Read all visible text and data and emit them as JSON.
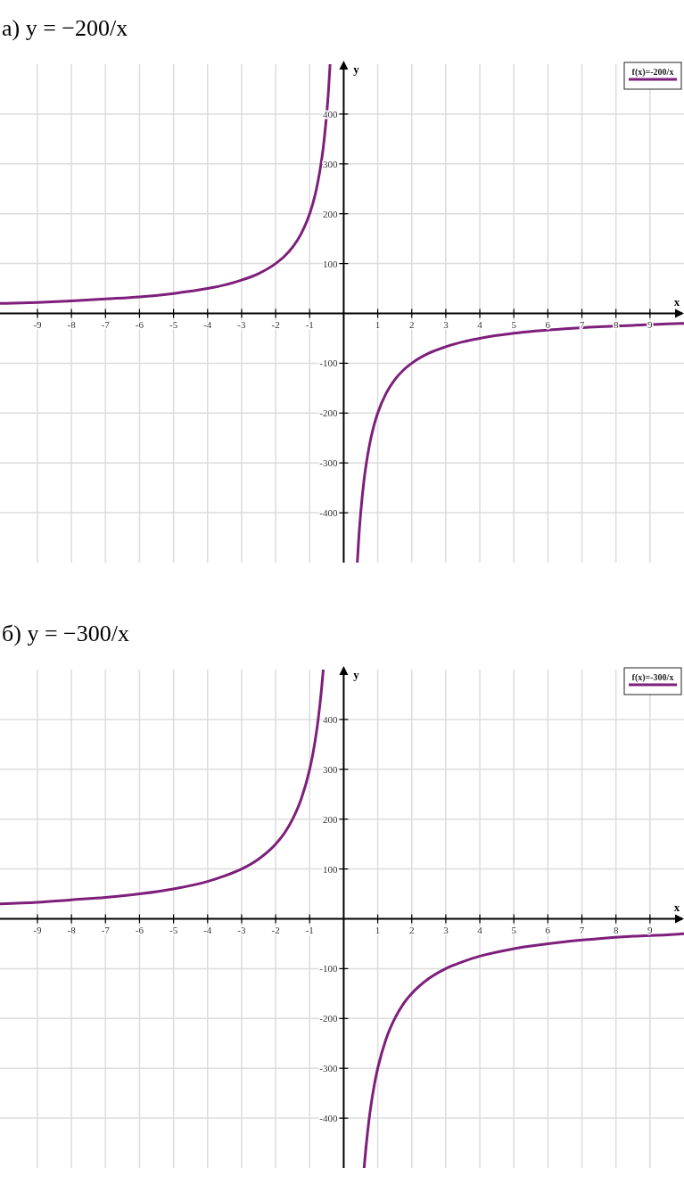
{
  "chart_data": [
    {
      "type": "line",
      "title": "а) y = −200/x",
      "xlabel": "x",
      "ylabel": "y",
      "xlim": [
        -10.1,
        10
      ],
      "ylim": [
        -500,
        500
      ],
      "xticks": [
        -9,
        -8,
        -7,
        -6,
        -5,
        -4,
        -3,
        -2,
        -1,
        1,
        2,
        3,
        4,
        5,
        6,
        7,
        8,
        9
      ],
      "yticks": [
        -400,
        -300,
        -200,
        -100,
        100,
        200,
        300,
        400
      ],
      "grid": true,
      "legend": "top right",
      "series": [
        {
          "name": "f(x)=-200/x",
          "color": "#7d1f7b",
          "x": [
            -10.1,
            -9,
            -8,
            -7,
            -6,
            -5,
            -4,
            -3.5,
            -3,
            -2.5,
            -2,
            -1.75,
            -1.5,
            -1.25,
            -1,
            -0.9,
            -0.8,
            -0.7,
            -0.6,
            -0.55,
            -0.45,
            -0.4,
            0,
            0.4,
            0.45,
            0.5,
            0.6,
            0.7,
            0.8,
            0.9,
            1,
            1.25,
            1.5,
            1.75,
            2,
            2.5,
            3,
            3.5,
            4,
            5,
            6.5,
            7.5,
            8.5,
            9.5,
            10
          ],
          "values": [
            20,
            22,
            25,
            29,
            33,
            40,
            50,
            57,
            67,
            80,
            100,
            114,
            133,
            160,
            200,
            222,
            250,
            286,
            333,
            364,
            444,
            500,
            null,
            -500,
            -444,
            -400,
            -333,
            -286,
            -250,
            -222,
            -200,
            -160,
            -133,
            -114,
            -100,
            -80,
            -67,
            -57,
            -50,
            -40,
            -31,
            -27,
            -24,
            -21,
            -20
          ]
        }
      ]
    },
    {
      "type": "line",
      "title": "б) y = −300/x",
      "xlabel": "x",
      "ylabel": "y",
      "xlim": [
        -10.1,
        10
      ],
      "ylim": [
        -500,
        500
      ],
      "xticks": [
        -9,
        -8,
        -7,
        -6,
        -5,
        -4,
        -3,
        -2,
        -1,
        1,
        2,
        3,
        4,
        5,
        6,
        7,
        8,
        9
      ],
      "yticks": [
        -400,
        -300,
        -200,
        -100,
        100,
        200,
        300,
        400
      ],
      "grid": true,
      "legend": "top right",
      "series": [
        {
          "name": "f(x)=-300/x",
          "color": "#7d1f7b",
          "x": [
            -10.1,
            -9,
            -8,
            -7,
            -6,
            -5,
            -4,
            -3.5,
            -3,
            -2.5,
            -2,
            -1.75,
            -1.5,
            -1.25,
            -1,
            -0.9,
            -0.8,
            -0.75,
            -0.7,
            -0.65,
            -0.6,
            0,
            0.6,
            0.65,
            0.7,
            0.75,
            0.8,
            0.9,
            1,
            1.25,
            1.5,
            1.75,
            2,
            2.5,
            3,
            3.5,
            4,
            5,
            6.5,
            7.5,
            8.5,
            9.5,
            10
          ],
          "values": [
            30,
            33,
            38,
            43,
            50,
            60,
            75,
            86,
            100,
            120,
            150,
            171,
            200,
            240,
            300,
            333,
            375,
            400,
            429,
            462,
            500,
            null,
            -500,
            -462,
            -429,
            -400,
            -375,
            -333,
            -300,
            -240,
            -200,
            -171,
            -150,
            -120,
            -100,
            -86,
            -75,
            -60,
            -46,
            -40,
            -35,
            -32,
            -30
          ]
        }
      ]
    }
  ]
}
